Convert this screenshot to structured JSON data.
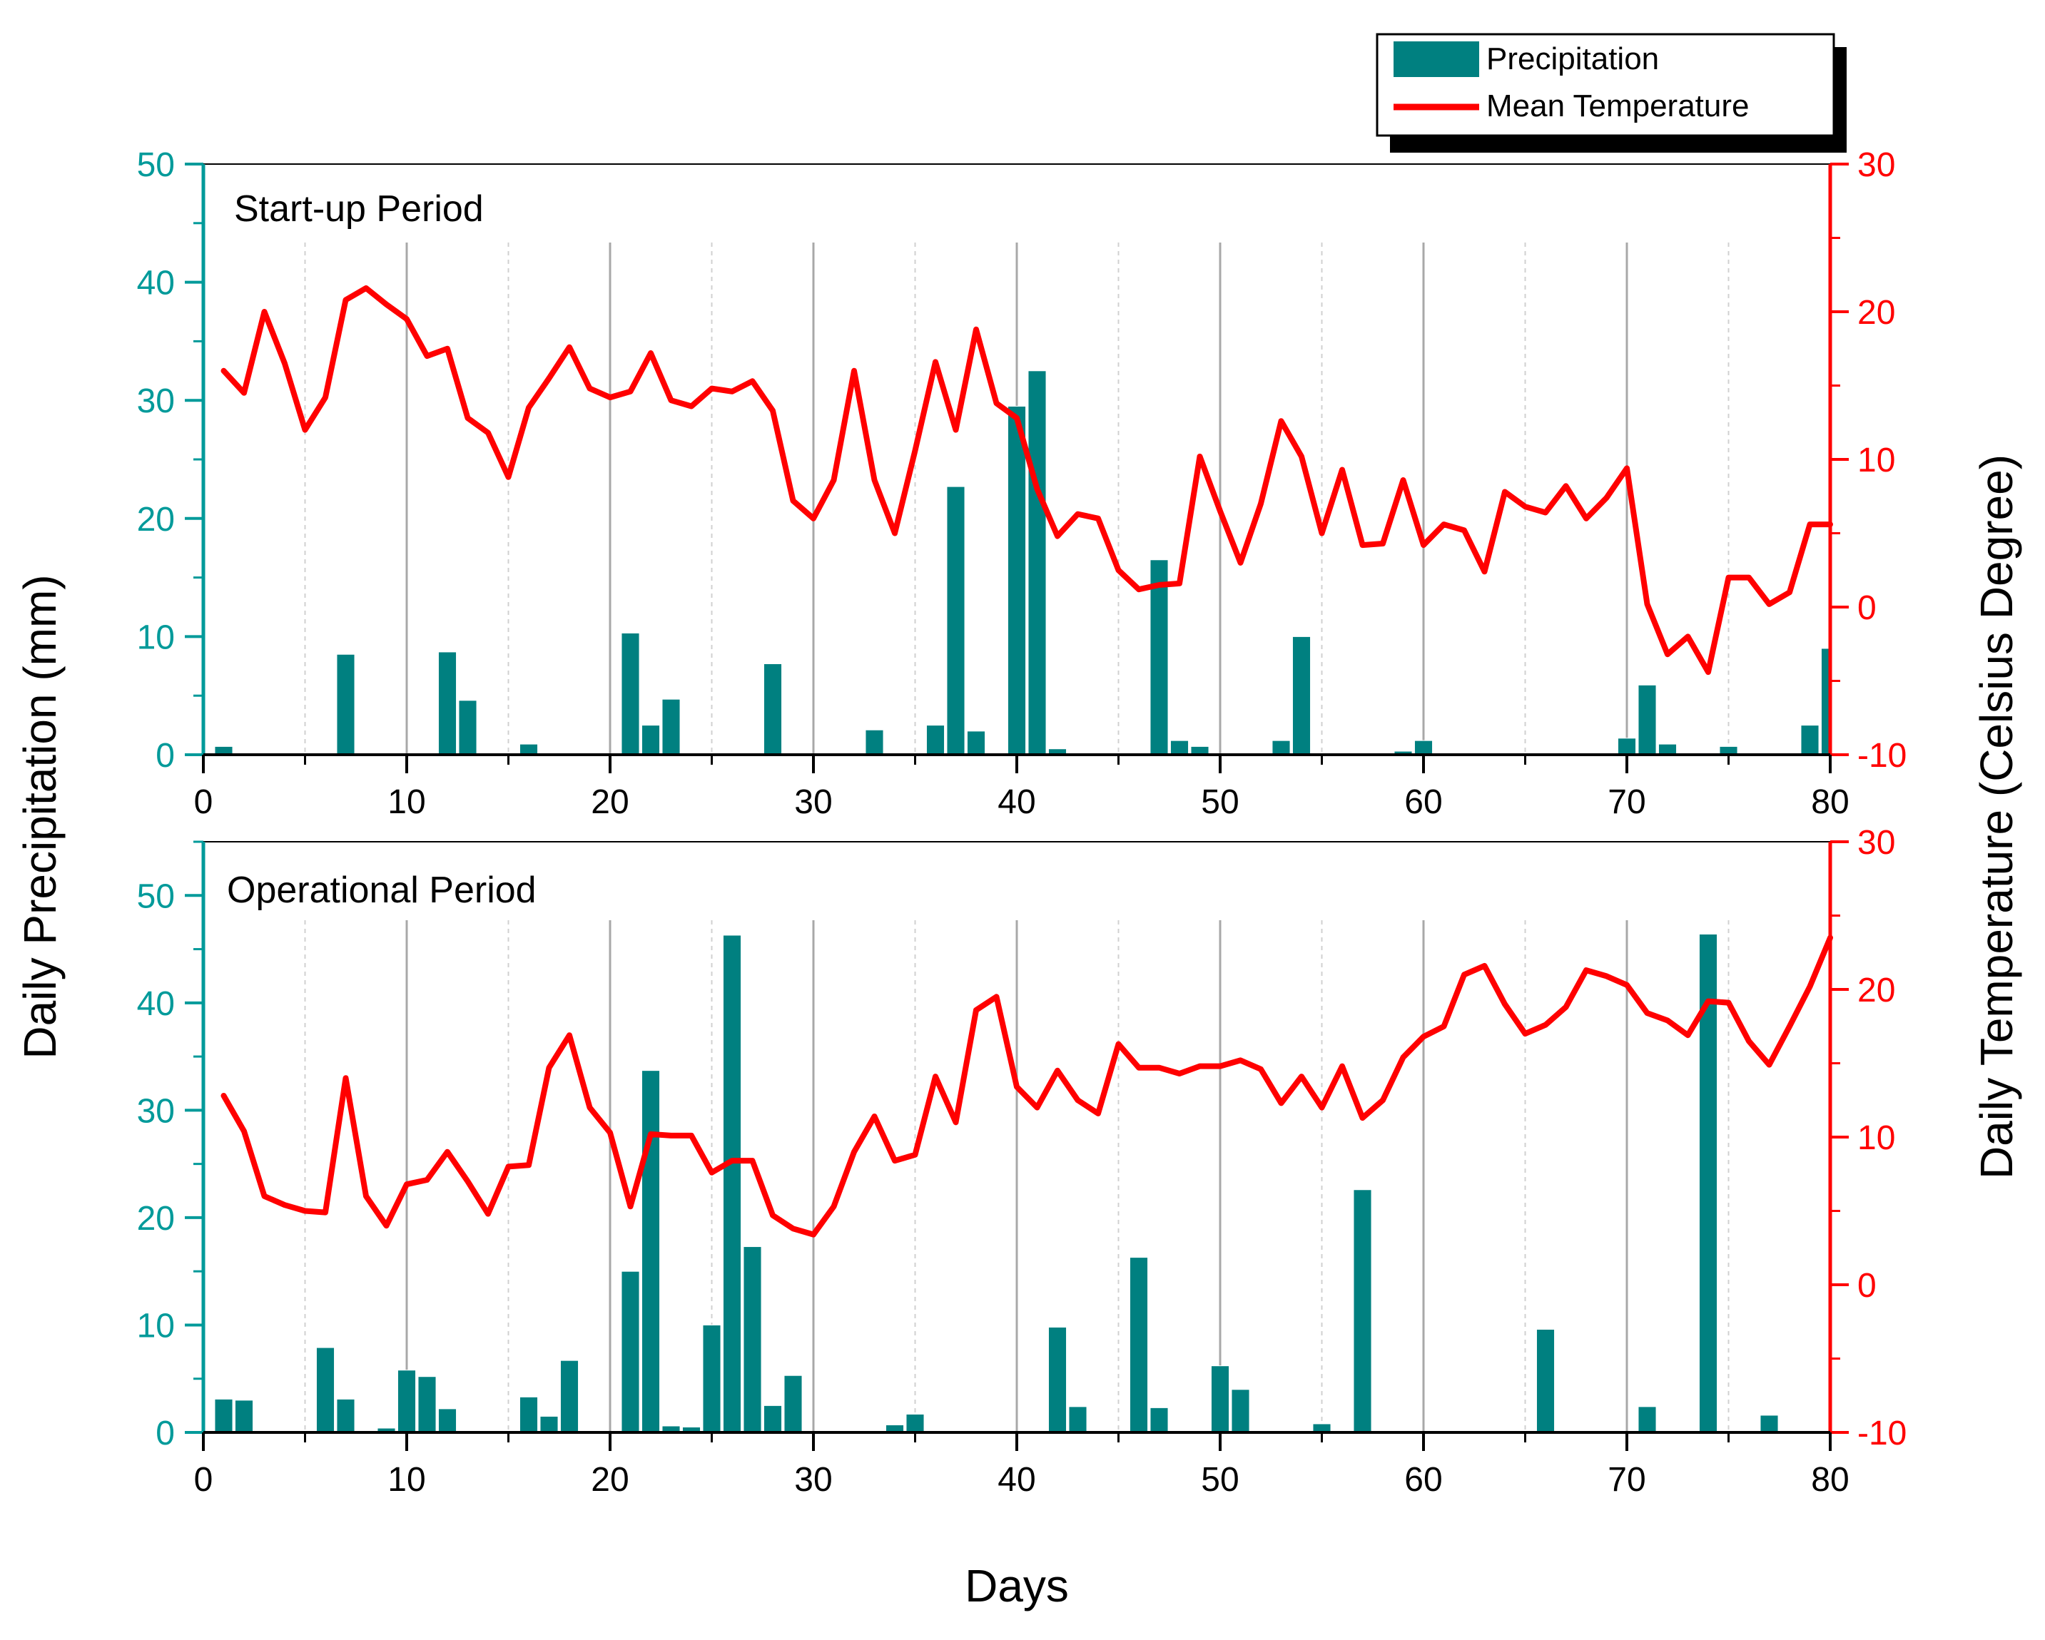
{
  "colors": {
    "bar": "#008080",
    "line": "#ff0000",
    "left_axis": "#009a9a",
    "right_axis": "#ff0000",
    "grid": "#b0b0b0"
  },
  "legend": {
    "precip_label": "Precipitation",
    "temp_label": "Mean Temperature"
  },
  "y_left_label": "Daily Precipitation (mm)",
  "y_right_label": "Daily Temperature (Celsius Degree)",
  "x_label": "Days",
  "chart_data": [
    {
      "type": "bar+line",
      "title": "Start-up Period",
      "xlim": [
        0,
        80
      ],
      "x_ticks": [
        0,
        10,
        20,
        30,
        40,
        50,
        60,
        70,
        80
      ],
      "y_left_lim": [
        0,
        50
      ],
      "y_left_ticks": [
        0,
        10,
        20,
        30,
        40,
        50
      ],
      "y_right_lim": [
        -10,
        30
      ],
      "y_right_ticks": [
        -10,
        0,
        10,
        20,
        30
      ],
      "precipitation": [
        {
          "day": 1,
          "value": 0.7
        },
        {
          "day": 7,
          "value": 8.5
        },
        {
          "day": 12,
          "value": 8.7
        },
        {
          "day": 13,
          "value": 4.6
        },
        {
          "day": 16,
          "value": 0.9
        },
        {
          "day": 21,
          "value": 10.3
        },
        {
          "day": 22,
          "value": 2.5
        },
        {
          "day": 23,
          "value": 4.7
        },
        {
          "day": 28,
          "value": 7.7
        },
        {
          "day": 33,
          "value": 2.1
        },
        {
          "day": 36,
          "value": 2.5
        },
        {
          "day": 37,
          "value": 22.7
        },
        {
          "day": 38,
          "value": 2.0
        },
        {
          "day": 40,
          "value": 29.5
        },
        {
          "day": 41,
          "value": 32.5
        },
        {
          "day": 42,
          "value": 0.5
        },
        {
          "day": 47,
          "value": 16.5
        },
        {
          "day": 48,
          "value": 1.2
        },
        {
          "day": 49,
          "value": 0.7
        },
        {
          "day": 53,
          "value": 1.2
        },
        {
          "day": 54,
          "value": 10.0
        },
        {
          "day": 59,
          "value": 0.3
        },
        {
          "day": 60,
          "value": 1.2
        },
        {
          "day": 70,
          "value": 1.4
        },
        {
          "day": 71,
          "value": 5.9
        },
        {
          "day": 72,
          "value": 0.9
        },
        {
          "day": 75,
          "value": 0.7
        },
        {
          "day": 79,
          "value": 2.5
        },
        {
          "day": 80,
          "value": 9.0
        }
      ],
      "temperature": [
        16,
        14.5,
        20,
        16.5,
        12,
        14.2,
        20.8,
        21.6,
        20.5,
        19.5,
        17,
        17.5,
        12.8,
        11.8,
        8.8,
        13.5,
        15.5,
        17.6,
        14.8,
        14.2,
        14.6,
        17.2,
        14,
        13.6,
        14.8,
        14.6,
        15.3,
        13.3,
        7.2,
        6,
        8.6,
        16,
        8.6,
        5,
        10.6,
        16.6,
        12,
        18.8,
        13.8,
        12.8,
        8,
        4.8,
        6.3,
        6,
        2.5,
        1.2,
        1.5,
        1.6,
        10.2,
        6.5,
        3,
        7,
        12.6,
        10.2,
        5,
        9.3,
        4.2,
        4.3,
        8.6,
        4.2,
        5.6,
        5.2,
        2.4,
        7.8,
        6.8,
        6.4,
        8.2,
        6,
        7.4,
        9.4,
        0.2,
        -3.2,
        -2,
        -4.4,
        2,
        2,
        0.2,
        1,
        5.6,
        5.6
      ]
    },
    {
      "type": "bar+line",
      "title": "Operational Period",
      "xlim": [
        0,
        80
      ],
      "x_ticks": [
        0,
        10,
        20,
        30,
        40,
        50,
        60,
        70,
        80
      ],
      "y_left_lim": [
        0,
        55
      ],
      "y_left_ticks": [
        0,
        10,
        20,
        30,
        40,
        50
      ],
      "y_right_lim": [
        -10,
        30
      ],
      "y_right_ticks": [
        -10,
        0,
        10,
        20,
        30
      ],
      "precipitation": [
        {
          "day": 1,
          "value": 3.1
        },
        {
          "day": 2,
          "value": 3.0
        },
        {
          "day": 6,
          "value": 7.9
        },
        {
          "day": 7,
          "value": 3.1
        },
        {
          "day": 9,
          "value": 0.4
        },
        {
          "day": 10,
          "value": 5.8
        },
        {
          "day": 11,
          "value": 5.2
        },
        {
          "day": 12,
          "value": 2.2
        },
        {
          "day": 16,
          "value": 3.3
        },
        {
          "day": 17,
          "value": 1.5
        },
        {
          "day": 18,
          "value": 6.7
        },
        {
          "day": 21,
          "value": 15.0
        },
        {
          "day": 22,
          "value": 33.7
        },
        {
          "day": 23,
          "value": 0.6
        },
        {
          "day": 24,
          "value": 0.5
        },
        {
          "day": 25,
          "value": 10.0
        },
        {
          "day": 26,
          "value": 46.3
        },
        {
          "day": 27,
          "value": 17.3
        },
        {
          "day": 28,
          "value": 2.5
        },
        {
          "day": 29,
          "value": 5.3
        },
        {
          "day": 34,
          "value": 0.7
        },
        {
          "day": 35,
          "value": 1.7
        },
        {
          "day": 42,
          "value": 9.8
        },
        {
          "day": 43,
          "value": 2.4
        },
        {
          "day": 46,
          "value": 16.3
        },
        {
          "day": 47,
          "value": 2.3
        },
        {
          "day": 50,
          "value": 6.2
        },
        {
          "day": 51,
          "value": 4.0
        },
        {
          "day": 55,
          "value": 0.8
        },
        {
          "day": 57,
          "value": 22.6
        },
        {
          "day": 66,
          "value": 9.6
        },
        {
          "day": 71,
          "value": 2.4
        },
        {
          "day": 74,
          "value": 46.4
        },
        {
          "day": 77,
          "value": 1.6
        }
      ],
      "temperature": [
        12.8,
        10.4,
        6,
        5.4,
        5,
        4.9,
        14,
        6,
        4,
        6.8,
        7.1,
        9,
        7,
        4.8,
        8,
        8.1,
        14.7,
        16.9,
        12,
        10.3,
        5.3,
        10.2,
        10.1,
        10.1,
        7.6,
        8.4,
        8.4,
        4.7,
        3.8,
        3.4,
        5.3,
        9,
        11.4,
        8.4,
        8.8,
        14.1,
        11,
        18.6,
        19.5,
        13.4,
        12,
        14.5,
        12.5,
        11.6,
        16.3,
        14.7,
        14.7,
        14.3,
        14.8,
        14.8,
        15.2,
        14.6,
        12.3,
        14.1,
        12,
        14.8,
        11.3,
        12.5,
        15.4,
        16.8,
        17.5,
        21,
        21.6,
        19,
        17,
        17.6,
        18.8,
        21.3,
        20.9,
        20.3,
        18.4,
        17.9,
        16.9,
        19.2,
        19.1,
        16.5,
        14.9,
        17.5,
        20.2,
        23.5
      ]
    }
  ]
}
